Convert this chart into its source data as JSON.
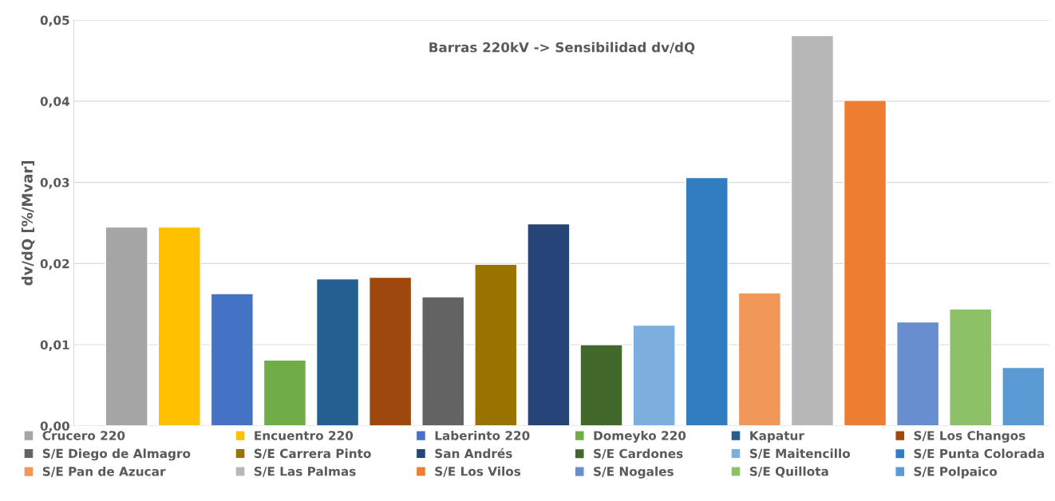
{
  "chart_data": {
    "type": "bar",
    "title": "Barras 220kV -> Sensibilidad dv/dQ",
    "ylabel": "dv/dQ [%/Mvar]",
    "categories": [
      null,
      null,
      null,
      null,
      null,
      null,
      null,
      null,
      null,
      null,
      null,
      null,
      null,
      null,
      null,
      null,
      null,
      null
    ],
    "series": [
      {
        "name": "Crucero 220",
        "color": "#a5a5a5",
        "values": [
          0.0245,
          null,
          null,
          null,
          null,
          null,
          null,
          null,
          null,
          null,
          null,
          null,
          null,
          null,
          null,
          null,
          null,
          null
        ]
      },
      {
        "name": "Encuentro 220",
        "color": "#ffc000",
        "values": [
          null,
          0.0245,
          null,
          null,
          null,
          null,
          null,
          null,
          null,
          null,
          null,
          null,
          null,
          null,
          null,
          null,
          null,
          null
        ]
      },
      {
        "name": "Laberinto 220",
        "color": "#4472c4",
        "values": [
          null,
          null,
          0.0163,
          null,
          null,
          null,
          null,
          null,
          null,
          null,
          null,
          null,
          null,
          null,
          null,
          null,
          null,
          null
        ]
      },
      {
        "name": "Domeyko 220",
        "color": "#70ad47",
        "values": [
          null,
          null,
          null,
          0.0081,
          null,
          null,
          null,
          null,
          null,
          null,
          null,
          null,
          null,
          null,
          null,
          null,
          null,
          null
        ]
      },
      {
        "name": "Kapatur",
        "color": "#255e91",
        "values": [
          null,
          null,
          null,
          null,
          0.0181,
          null,
          null,
          null,
          null,
          null,
          null,
          null,
          null,
          null,
          null,
          null,
          null,
          null
        ]
      },
      {
        "name": "S/E Los Changos",
        "color": "#9e480e",
        "values": [
          null,
          null,
          null,
          null,
          null,
          0.0183,
          null,
          null,
          null,
          null,
          null,
          null,
          null,
          null,
          null,
          null,
          null,
          null
        ]
      },
      {
        "name": "S/E Diego de Almagro",
        "color": "#636363",
        "values": [
          null,
          null,
          null,
          null,
          null,
          null,
          0.0159,
          null,
          null,
          null,
          null,
          null,
          null,
          null,
          null,
          null,
          null,
          null
        ]
      },
      {
        "name": "S/E Carrera Pinto",
        "color": "#997300",
        "values": [
          null,
          null,
          null,
          null,
          null,
          null,
          null,
          0.0199,
          null,
          null,
          null,
          null,
          null,
          null,
          null,
          null,
          null,
          null
        ]
      },
      {
        "name": "San Andrés",
        "color": "#264478",
        "values": [
          null,
          null,
          null,
          null,
          null,
          null,
          null,
          null,
          0.0249,
          null,
          null,
          null,
          null,
          null,
          null,
          null,
          null,
          null
        ]
      },
      {
        "name": "S/E Cardones",
        "color": "#43682b",
        "values": [
          null,
          null,
          null,
          null,
          null,
          null,
          null,
          null,
          null,
          0.01,
          null,
          null,
          null,
          null,
          null,
          null,
          null,
          null
        ]
      },
      {
        "name": "S/E Maitencillo",
        "color": "#7cafdd",
        "values": [
          null,
          null,
          null,
          null,
          null,
          null,
          null,
          null,
          null,
          null,
          0.0124,
          null,
          null,
          null,
          null,
          null,
          null,
          null
        ]
      },
      {
        "name": "S/E Punta Colorada",
        "color": "#327dc2",
        "values": [
          null,
          null,
          null,
          null,
          null,
          null,
          null,
          null,
          null,
          null,
          null,
          0.0306,
          null,
          null,
          null,
          null,
          null,
          null
        ]
      },
      {
        "name": "S/E Pan de Azucar",
        "color": "#f1975a",
        "values": [
          null,
          null,
          null,
          null,
          null,
          null,
          null,
          null,
          null,
          null,
          null,
          null,
          0.0164,
          null,
          null,
          null,
          null,
          null
        ]
      },
      {
        "name": "S/E Las Palmas",
        "color": "#b7b7b7",
        "values": [
          null,
          null,
          null,
          null,
          null,
          null,
          null,
          null,
          null,
          null,
          null,
          null,
          null,
          0.0481,
          null,
          null,
          null,
          null
        ]
      },
      {
        "name": "S/E Los Vilos",
        "color": "#ed7d31",
        "values": [
          null,
          null,
          null,
          null,
          null,
          null,
          null,
          null,
          null,
          null,
          null,
          null,
          null,
          null,
          0.0401,
          null,
          null,
          null
        ]
      },
      {
        "name": "S/E Nogales",
        "color": "#698ed0",
        "values": [
          null,
          null,
          null,
          null,
          null,
          null,
          null,
          null,
          null,
          null,
          null,
          null,
          null,
          null,
          null,
          0.0128,
          null,
          null
        ]
      },
      {
        "name": "S/E Quillota",
        "color": "#8cc168",
        "values": [
          null,
          null,
          null,
          null,
          null,
          null,
          null,
          null,
          null,
          null,
          null,
          null,
          null,
          null,
          null,
          null,
          0.0144,
          null
        ]
      },
      {
        "name": "S/E Polpaico",
        "color": "#5b9bd5",
        "values": [
          null,
          null,
          null,
          null,
          null,
          null,
          null,
          null,
          null,
          null,
          null,
          null,
          null,
          null,
          null,
          null,
          null,
          0.0072
        ]
      }
    ],
    "ylim": [
      0,
      0.05
    ],
    "yticks": [
      {
        "value": 0,
        "label": "0,00"
      },
      {
        "value": 0.01,
        "label": "0,01"
      },
      {
        "value": 0.02,
        "label": "0,02"
      },
      {
        "value": 0.03,
        "label": "0,03"
      },
      {
        "value": 0.04,
        "label": "0,04"
      },
      {
        "value": 0.05,
        "label": "0,05"
      }
    ],
    "grid": "y",
    "legend": "bottom",
    "tick_labels": "y"
  }
}
